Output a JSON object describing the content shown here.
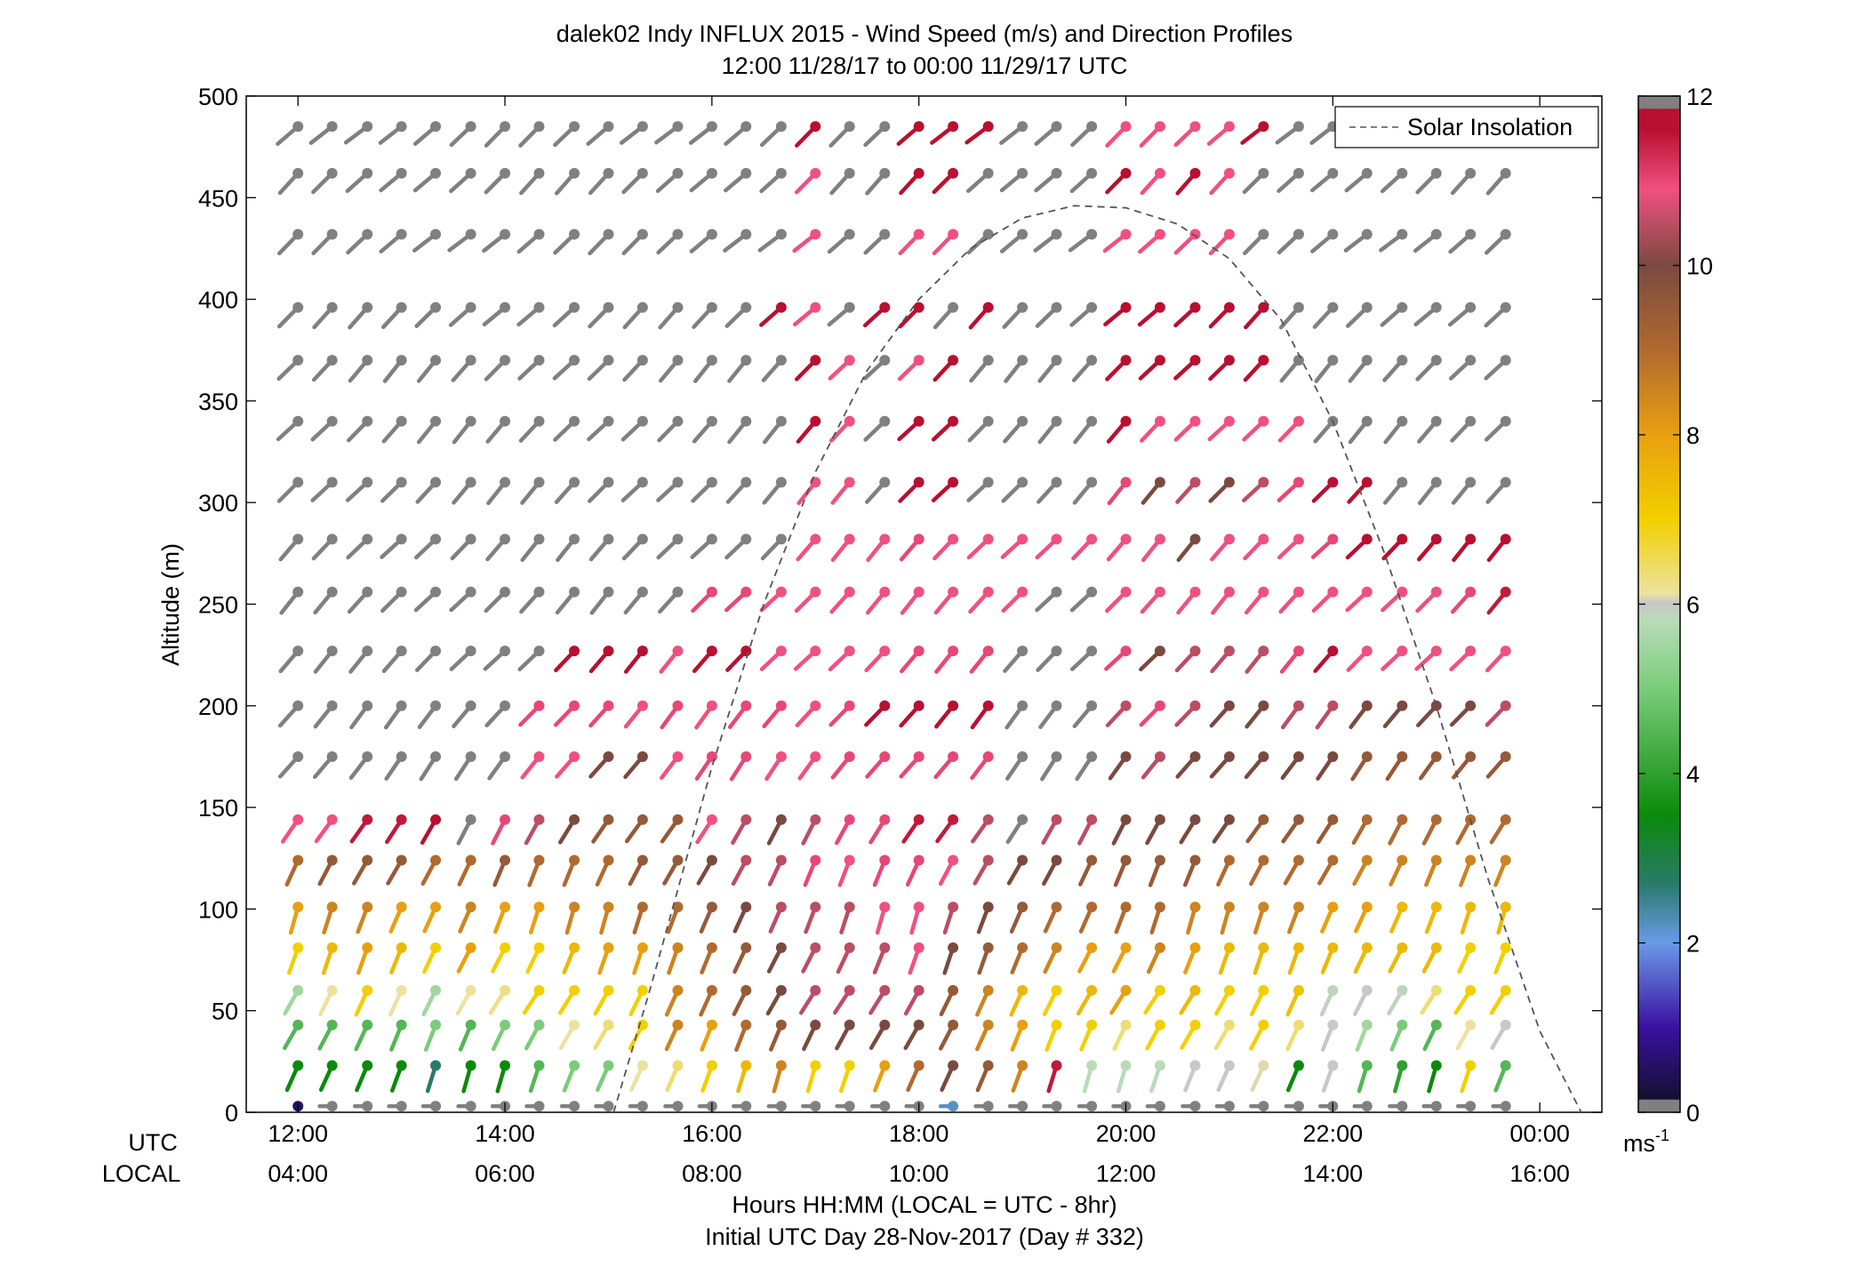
{
  "chart_data": {
    "type": "vector-field",
    "title": "dalek02 Indy INFLUX 2015 - Wind Speed (m/s) and Direction Profiles",
    "subtitle": "12:00 11/28/17 to 00:00 11/29/17  UTC",
    "ylabel": "Altitude (m)",
    "ylim": [
      0,
      500
    ],
    "yticks": [
      0,
      50,
      100,
      150,
      200,
      250,
      300,
      350,
      400,
      450,
      500
    ],
    "xlim_hours_utc": [
      11.5,
      24.6
    ],
    "xticks_hours_utc": [
      12,
      14,
      16,
      18,
      20,
      22,
      24
    ],
    "utc_row_label": "UTC",
    "local_row_label": "LOCAL",
    "utc_tick_labels": [
      "12:00",
      "14:00",
      "16:00",
      "18:00",
      "20:00",
      "22:00",
      "00:00"
    ],
    "local_tick_labels": [
      "04:00",
      "06:00",
      "08:00",
      "10:00",
      "12:00",
      "14:00",
      "16:00"
    ],
    "xlabel": "Hours HH:MM  (LOCAL = UTC - 8hr)",
    "xlabel2": "Initial UTC Day 28-Nov-2017 (Day # 332)",
    "legend": {
      "position": "top-right",
      "entries": [
        "Solar Insolation"
      ]
    },
    "colorbar": {
      "range": [
        0,
        12
      ],
      "ticks": [
        0,
        2,
        4,
        6,
        8,
        10,
        12
      ],
      "tick_labels": [
        "0",
        "2",
        "4",
        "6",
        "8",
        "10",
        "12"
      ],
      "unit_base": "ms",
      "unit_exp": "-1",
      "colors": {
        "below": "#808080",
        "v0": "#141030",
        "v1": "#3a10a0",
        "v2": "#6a9ae8",
        "v2_7": "#2a7a6a",
        "v3_5": "#0a8a0a",
        "v5": "#7acc7a",
        "v5_8": "#b8dcb8",
        "v6": "#c8c8c8",
        "v6_3": "#ece2a0",
        "v7": "#f2d000",
        "v8": "#e8a010",
        "v9": "#b06a30",
        "v10": "#7a4a40",
        "v10_9": "#f05080",
        "v11_6": "#b81030",
        "above": "#808080"
      }
    },
    "solar_insolation": {
      "style": "dashed",
      "color": "#555555",
      "points_hours_altitude": [
        [
          15.05,
          0
        ],
        [
          15.4,
          60
        ],
        [
          16.0,
          170
        ],
        [
          16.5,
          250
        ],
        [
          17.0,
          315
        ],
        [
          17.5,
          365
        ],
        [
          18.0,
          400
        ],
        [
          18.5,
          425
        ],
        [
          19.0,
          440
        ],
        [
          19.5,
          446
        ],
        [
          20.0,
          445
        ],
        [
          20.5,
          437
        ],
        [
          21.0,
          420
        ],
        [
          21.5,
          390
        ],
        [
          22.0,
          340
        ],
        [
          22.5,
          275
        ],
        [
          23.0,
          200
        ],
        [
          23.5,
          115
        ],
        [
          24.0,
          40
        ],
        [
          24.4,
          0
        ]
      ]
    },
    "wind": {
      "times_hours_utc": [
        12.0,
        12.33,
        12.67,
        13.0,
        13.33,
        13.67,
        14.0,
        14.33,
        14.67,
        15.0,
        15.33,
        15.67,
        16.0,
        16.33,
        16.67,
        17.0,
        17.33,
        17.67,
        18.0,
        18.33,
        18.67,
        19.0,
        19.33,
        19.67,
        20.0,
        20.33,
        20.67,
        21.0,
        21.33,
        21.67,
        22.0,
        22.33,
        22.67,
        23.0,
        23.33,
        23.67
      ],
      "altitudes_m": [
        3,
        23,
        43,
        60,
        81,
        101,
        124,
        144,
        175,
        200,
        227,
        256,
        282,
        310,
        340,
        370,
        396,
        432,
        462,
        485
      ],
      "speed_ms_by_altitude": [
        [
          0.5,
          -1,
          -1,
          -1,
          -1,
          -1,
          -1,
          -1,
          -1,
          -1,
          -1,
          -1,
          -1,
          -1,
          -1,
          -1,
          -1,
          -1,
          -1,
          2.2,
          -1,
          -1,
          -1,
          -1,
          -1,
          -1,
          -1,
          -1,
          -1,
          -1,
          -1,
          -1,
          -1,
          -1,
          -1,
          -1
        ],
        [
          3.5,
          3.5,
          3.5,
          3.5,
          2.7,
          3.5,
          3.5,
          4.5,
          5,
          5,
          6.3,
          6.5,
          7,
          7.5,
          8.5,
          7,
          7,
          8,
          9,
          10,
          9.5,
          8.5,
          11.5,
          5.8,
          5.8,
          5.8,
          6,
          6,
          6.2,
          3.5,
          6,
          4.5,
          4,
          3.5,
          7,
          4.5
        ],
        [
          4.5,
          4.5,
          4.5,
          4.5,
          5,
          4.5,
          5,
          5,
          6.3,
          6.5,
          7,
          8.5,
          8,
          9,
          9.5,
          10,
          10,
          10,
          10,
          9.5,
          8.5,
          8,
          7,
          7,
          6.5,
          7,
          7,
          6.5,
          7,
          6.5,
          6,
          5.5,
          5,
          4.5,
          6.3,
          6
        ],
        [
          5.5,
          6.3,
          7,
          6.3,
          5.5,
          6.3,
          6.4,
          7,
          7,
          7,
          7,
          8.5,
          9,
          9.5,
          10,
          10.5,
          10.5,
          10.5,
          10.5,
          9.5,
          8.5,
          7.5,
          7,
          7.5,
          8,
          7,
          7.5,
          7,
          7,
          7.3,
          5.9,
          6,
          5.9,
          6.5,
          7,
          7
        ],
        [
          7,
          7.5,
          8,
          7.5,
          7,
          8,
          7,
          7,
          7.5,
          8,
          8,
          8.5,
          9,
          9.5,
          10,
          10.5,
          10.5,
          10.5,
          10.9,
          10,
          9.5,
          9,
          8.5,
          8,
          8,
          8.5,
          8,
          7.5,
          7.5,
          7.5,
          7.5,
          7.5,
          7.5,
          7.5,
          7,
          7
        ],
        [
          8,
          8.5,
          8.5,
          8,
          8,
          8.5,
          8,
          8,
          8.5,
          8.5,
          9,
          9,
          9.5,
          10,
          10.5,
          10.5,
          10.5,
          10.9,
          10.9,
          10.5,
          10,
          9.5,
          9,
          9,
          9,
          9,
          8.5,
          8.5,
          8.5,
          8.5,
          8,
          8,
          7.5,
          7.5,
          7.5,
          7.5
        ],
        [
          9,
          9.5,
          9.5,
          9.5,
          9,
          9,
          9.5,
          9,
          9,
          9,
          9.5,
          9.5,
          10,
          10.5,
          10.5,
          11,
          10.9,
          11,
          11,
          10.9,
          10.5,
          10,
          10,
          9.5,
          9.5,
          9.5,
          9.5,
          9,
          9,
          9,
          9,
          8.5,
          8.5,
          8.5,
          8.5,
          8.5
        ],
        [
          10.9,
          10.9,
          11.5,
          11.5,
          11.6,
          12.5,
          11,
          10.5,
          10,
          9.5,
          9.5,
          9.5,
          10.9,
          10.5,
          10,
          10.5,
          11,
          11,
          11.5,
          11.5,
          10.5,
          13,
          10.5,
          10.5,
          10,
          10,
          10,
          10,
          9.5,
          9.5,
          9.5,
          9,
          9,
          9,
          9,
          9
        ],
        [
          12.5,
          12.5,
          12.5,
          12.5,
          12.5,
          12.5,
          12.5,
          10.9,
          10.9,
          10,
          10,
          10.9,
          11,
          11,
          10.9,
          10.9,
          11,
          11,
          11,
          11,
          11,
          12.5,
          12.5,
          12.5,
          10,
          10.5,
          10,
          10,
          10,
          10,
          10,
          9.5,
          9.5,
          9.5,
          9.5,
          9.5
        ],
        [
          12.5,
          12.5,
          12.5,
          12.5,
          12.5,
          12.5,
          12.5,
          11,
          11,
          11,
          10.9,
          11,
          10.9,
          11,
          11,
          10.9,
          11,
          11.6,
          11.6,
          11.6,
          11.6,
          12.5,
          12.5,
          12.5,
          10.5,
          11,
          10.5,
          10,
          10,
          10.5,
          10.5,
          10,
          10,
          10,
          10,
          10.5
        ],
        [
          12.5,
          12.5,
          12.5,
          12.5,
          12.5,
          12.5,
          12.5,
          12.5,
          11.6,
          11.6,
          11.6,
          10.9,
          11.6,
          11.6,
          10.9,
          10.9,
          10.9,
          10.9,
          11,
          11,
          11,
          12.5,
          12.5,
          12.5,
          11,
          10,
          10.5,
          10.5,
          10.5,
          11,
          11.6,
          10.9,
          10.9,
          10.9,
          10.9,
          10.9
        ],
        [
          12.5,
          12.5,
          12.5,
          12.5,
          12.5,
          12.5,
          12.5,
          12.5,
          12.5,
          12.5,
          12.5,
          12.5,
          11,
          11,
          10.9,
          10.9,
          10.9,
          10.9,
          10.9,
          10.9,
          10.9,
          10.9,
          12.5,
          12.5,
          10.9,
          10.9,
          10.9,
          10.9,
          10.9,
          10.9,
          10.9,
          10.9,
          10.9,
          10.9,
          11,
          11.5
        ],
        [
          12.5,
          12.5,
          12.5,
          12.5,
          12.5,
          12.5,
          12.5,
          12.5,
          12.5,
          12.5,
          12.5,
          12.5,
          12.5,
          12.5,
          12.5,
          10.9,
          10.9,
          10.9,
          11,
          10.9,
          10.9,
          10.9,
          10.9,
          10.9,
          10.9,
          10.9,
          10,
          10.9,
          10.9,
          10.9,
          11,
          11.6,
          11.6,
          11.6,
          11.6,
          11.6
        ],
        [
          12.5,
          12.5,
          12.5,
          12.5,
          12.5,
          12.5,
          12.5,
          12.5,
          12.5,
          12.5,
          12.5,
          12.5,
          12.5,
          12.5,
          12.5,
          10.9,
          10.9,
          12.5,
          11.6,
          11.6,
          12.5,
          12.5,
          12.5,
          12.5,
          11,
          10,
          10.5,
          10,
          10.5,
          11,
          11.6,
          11.6,
          12.5,
          12.5,
          12.5,
          12.5
        ],
        [
          12.5,
          12.5,
          12.5,
          12.5,
          12.5,
          12.5,
          12.5,
          12.5,
          12.5,
          12.5,
          12.5,
          12.5,
          12.5,
          12.5,
          12.5,
          11.6,
          10.9,
          12.5,
          11.6,
          11.6,
          12.5,
          12.5,
          12.5,
          12.5,
          11.6,
          10.9,
          10.9,
          10.9,
          10.9,
          10.9,
          12.5,
          12.5,
          12.5,
          12.5,
          12.5,
          12.5
        ],
        [
          12.5,
          12.5,
          12.5,
          12.5,
          12.5,
          12.5,
          12.5,
          12.5,
          12.5,
          12.5,
          12.5,
          12.5,
          12.5,
          12.5,
          12.5,
          11.6,
          10.9,
          12.5,
          10.9,
          11.6,
          12.5,
          12.5,
          12.5,
          12.5,
          11.6,
          11.6,
          11.6,
          11.6,
          11.6,
          12.5,
          12.5,
          12.5,
          12.5,
          12.5,
          12.5,
          12.5
        ],
        [
          12.5,
          12.5,
          12.5,
          12.5,
          12.5,
          12.5,
          12.5,
          12.5,
          12.5,
          12.5,
          12.5,
          12.5,
          12.5,
          12.5,
          11.6,
          10.9,
          12.5,
          11.6,
          11.6,
          12.5,
          11.6,
          12.5,
          12.5,
          12.5,
          11.6,
          11.6,
          11.6,
          11.6,
          11.6,
          12.5,
          12.5,
          12.5,
          12.5,
          12.5,
          12.5,
          12.5
        ],
        [
          12.5,
          12.5,
          12.5,
          12.5,
          12.5,
          12.5,
          12.5,
          12.5,
          12.5,
          12.5,
          12.5,
          12.5,
          12.5,
          12.5,
          12.5,
          10.9,
          12.5,
          12.5,
          10.9,
          10.9,
          12.5,
          12.5,
          12.5,
          12.5,
          10.9,
          10.9,
          10.9,
          10.9,
          12.5,
          12.5,
          12.5,
          12.5,
          12.5,
          12.5,
          12.5,
          12.5
        ],
        [
          -1,
          12.5,
          -1,
          -1,
          -1,
          -1,
          -1,
          12.5,
          -1,
          -1,
          12.5,
          12.5,
          12.5,
          12.5,
          12.5,
          10.9,
          12.5,
          12.5,
          11.6,
          11.6,
          12.5,
          12.5,
          12.5,
          12.5,
          11.6,
          10.9,
          11.6,
          10.9,
          12.5,
          12.5,
          12.5,
          12.5,
          12.5,
          12.5,
          12.5,
          12.5
        ],
        [
          12.5,
          12.5,
          -1,
          12.5,
          -1,
          -1,
          12.5,
          12.5,
          -1,
          12.5,
          12.5,
          12.5,
          12.5,
          12.5,
          12.5,
          11.6,
          12.5,
          12.5,
          11.6,
          11.6,
          11.6,
          12.5,
          12.5,
          12.5,
          10.9,
          10.9,
          10.9,
          10.9,
          11.6,
          12.5,
          -1,
          -1,
          -1,
          -1,
          -1,
          -1
        ]
      ]
    }
  }
}
